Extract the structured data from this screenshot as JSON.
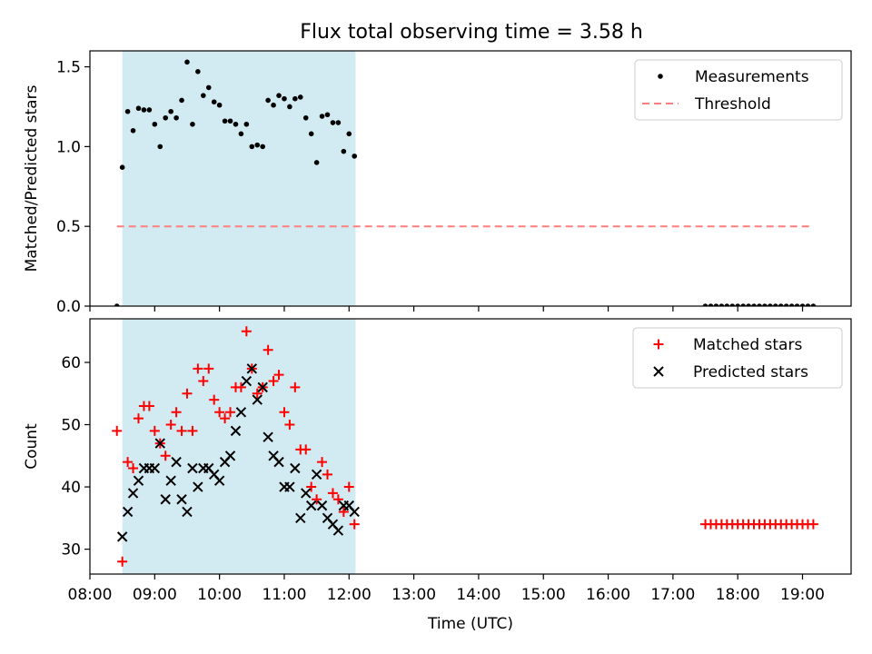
{
  "figure": {
    "title": "Flux total observing time = 3.58 h"
  },
  "chart_data": [
    {
      "type": "scatter",
      "ylabel": "Matched/Predicted stars",
      "xlabel": "",
      "xlim": [
        "08:00",
        "19:45"
      ],
      "ylim": [
        0,
        1.6
      ],
      "yticks": [
        0.0,
        0.5,
        1.0,
        1.5
      ],
      "yticklabels": [
        "0.0",
        "0.5",
        "1.0",
        "1.5"
      ],
      "grid": false,
      "legend_position": "top-right",
      "shaded_span": {
        "start": "08:30",
        "end": "12:06",
        "color": "#add8e6"
      },
      "series": [
        {
          "name": "Measurements",
          "kind": "points",
          "color": "#000000",
          "x": [
            "08:30",
            "08:35",
            "08:40",
            "08:45",
            "08:50",
            "08:55",
            "09:00",
            "09:05",
            "09:10",
            "09:15",
            "09:20",
            "09:25",
            "09:30",
            "09:35",
            "09:40",
            "09:45",
            "09:50",
            "09:55",
            "10:00",
            "10:05",
            "10:10",
            "10:15",
            "10:20",
            "10:25",
            "10:30",
            "10:35",
            "10:40",
            "10:45",
            "10:50",
            "10:55",
            "11:00",
            "11:05",
            "11:10",
            "11:15",
            "11:20",
            "11:25",
            "11:30",
            "11:35",
            "11:40",
            "11:45",
            "11:50",
            "11:55",
            "12:00",
            "12:05"
          ],
          "y": [
            0.87,
            1.22,
            1.1,
            1.24,
            1.23,
            1.23,
            1.14,
            1.0,
            1.18,
            1.22,
            1.18,
            1.29,
            1.53,
            1.14,
            1.47,
            1.32,
            1.37,
            1.28,
            1.26,
            1.16,
            1.16,
            1.14,
            1.08,
            1.14,
            1.0,
            1.01,
            1.0,
            1.29,
            1.26,
            1.32,
            1.3,
            1.25,
            1.3,
            1.31,
            1.18,
            1.08,
            0.9,
            1.19,
            1.2,
            1.15,
            1.15,
            0.97,
            1.08,
            0.94
          ]
        },
        {
          "name": "",
          "kind": "points",
          "color": "#000000",
          "x": [
            "08:25",
            "17:30",
            "17:35",
            "17:40",
            "17:45",
            "17:50",
            "17:55",
            "18:00",
            "18:05",
            "18:10",
            "18:15",
            "18:20",
            "18:25",
            "18:30",
            "18:35",
            "18:40",
            "18:45",
            "18:50",
            "18:55",
            "19:00",
            "19:05",
            "19:10"
          ],
          "y": [
            0,
            0,
            0,
            0,
            0,
            0,
            0,
            0,
            0,
            0,
            0,
            0,
            0,
            0,
            0,
            0,
            0,
            0,
            0,
            0,
            0,
            0
          ]
        },
        {
          "name": "Threshold",
          "kind": "dashed-line",
          "color": "#ff7f7f",
          "x": [
            "08:25",
            "19:10"
          ],
          "y": [
            0.5,
            0.5
          ]
        }
      ]
    },
    {
      "type": "scatter",
      "xlabel": "Time (UTC)",
      "ylabel": "Count",
      "xlim": [
        "08:00",
        "19:45"
      ],
      "ylim": [
        26,
        67
      ],
      "xticks": [
        "08:00",
        "09:00",
        "10:00",
        "11:00",
        "12:00",
        "13:00",
        "14:00",
        "15:00",
        "16:00",
        "17:00",
        "18:00",
        "19:00"
      ],
      "yticks": [
        30,
        40,
        50,
        60
      ],
      "yticklabels": [
        "30",
        "40",
        "50",
        "60"
      ],
      "grid": false,
      "legend_position": "top-right",
      "shaded_span": {
        "start": "08:30",
        "end": "12:06",
        "color": "#add8e6"
      },
      "series": [
        {
          "name": "Matched stars",
          "marker": "+",
          "color": "#ff0000",
          "x": [
            "08:25",
            "08:30",
            "08:35",
            "08:40",
            "08:45",
            "08:50",
            "08:55",
            "09:00",
            "09:05",
            "09:10",
            "09:15",
            "09:20",
            "09:25",
            "09:30",
            "09:35",
            "09:40",
            "09:45",
            "09:50",
            "09:55",
            "10:00",
            "10:05",
            "10:10",
            "10:15",
            "10:20",
            "10:25",
            "10:30",
            "10:35",
            "10:40",
            "10:45",
            "10:50",
            "10:55",
            "11:00",
            "11:05",
            "11:10",
            "11:15",
            "11:20",
            "11:25",
            "11:30",
            "11:35",
            "11:40",
            "11:45",
            "11:50",
            "11:55",
            "12:00",
            "12:05",
            "17:30",
            "17:35",
            "17:40",
            "17:45",
            "17:50",
            "17:55",
            "18:00",
            "18:05",
            "18:10",
            "18:15",
            "18:20",
            "18:25",
            "18:30",
            "18:35",
            "18:40",
            "18:45",
            "18:50",
            "18:55",
            "19:00",
            "19:05",
            "19:10"
          ],
          "y": [
            49,
            28,
            44,
            43,
            51,
            53,
            53,
            49,
            47,
            45,
            50,
            52,
            49,
            55,
            49,
            59,
            57,
            59,
            54,
            52,
            51,
            52,
            56,
            56,
            65,
            59,
            55,
            56,
            62,
            57,
            58,
            52,
            50,
            56,
            46,
            46,
            40,
            38,
            44,
            42,
            39,
            38,
            36,
            40,
            34,
            34,
            34,
            34,
            34,
            34,
            34,
            34,
            34,
            34,
            34,
            34,
            34,
            34,
            34,
            34,
            34,
            34,
            34,
            34,
            34,
            34
          ]
        },
        {
          "name": "Predicted stars",
          "marker": "x",
          "color": "#000000",
          "x": [
            "08:30",
            "08:35",
            "08:40",
            "08:45",
            "08:50",
            "08:55",
            "09:00",
            "09:05",
            "09:10",
            "09:15",
            "09:20",
            "09:25",
            "09:30",
            "09:35",
            "09:40",
            "09:45",
            "09:50",
            "09:55",
            "10:00",
            "10:05",
            "10:10",
            "10:15",
            "10:20",
            "10:25",
            "10:30",
            "10:35",
            "10:40",
            "10:45",
            "10:50",
            "10:55",
            "11:00",
            "11:05",
            "11:10",
            "11:15",
            "11:20",
            "11:25",
            "11:30",
            "11:35",
            "11:40",
            "11:45",
            "11:50",
            "11:55",
            "12:00",
            "12:05"
          ],
          "y": [
            32,
            36,
            39,
            41,
            43,
            43,
            43,
            47,
            38,
            41,
            44,
            38,
            36,
            43,
            40,
            43,
            43,
            42,
            41,
            44,
            45,
            49,
            52,
            57,
            59,
            54,
            56,
            48,
            45,
            44,
            40,
            40,
            43,
            35,
            39,
            37,
            42,
            37,
            35,
            34,
            33,
            37,
            37,
            36
          ]
        }
      ]
    }
  ]
}
